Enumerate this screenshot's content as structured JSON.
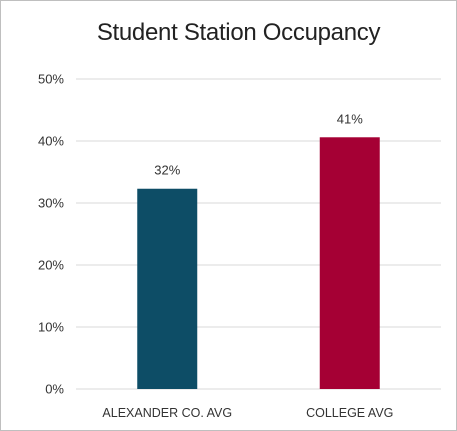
{
  "chart_data": {
    "type": "bar",
    "title": "Student Station Occupancy",
    "categories": [
      "ALEXANDER CO. AVG",
      "COLLEGE AVG"
    ],
    "values": [
      32.3,
      40.6
    ],
    "data_labels": [
      "32%",
      "41%"
    ],
    "colors": [
      "#0d4d66",
      "#a50034"
    ],
    "ylim": [
      0,
      50
    ],
    "yticks": [
      0,
      10,
      20,
      30,
      40,
      50
    ],
    "ytick_labels": [
      "0%",
      "10%",
      "20%",
      "30%",
      "40%",
      "50%"
    ],
    "grid": true,
    "legend": "none",
    "xlabel": "",
    "ylabel": ""
  }
}
